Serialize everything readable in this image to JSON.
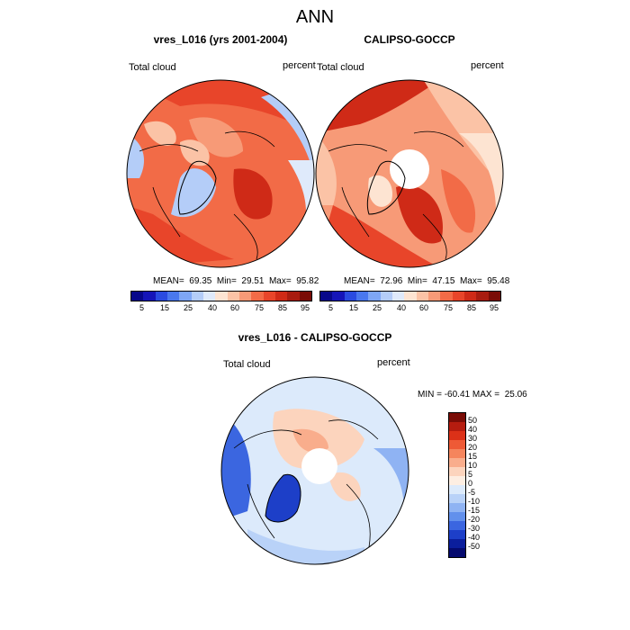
{
  "main_title": "ANN",
  "panel_left": {
    "title": "vres_L016 (yrs 2001-2004)",
    "left_label": "Total cloud",
    "right_label": "percent",
    "stats": "MEAN=  69.35  Min=  29.51  Max=  95.82"
  },
  "panel_right": {
    "title": "CALIPSO-GOCCP",
    "left_label": "Total cloud",
    "right_label": "percent",
    "stats": "MEAN=  72.96  Min=  47.15  Max=  95.48"
  },
  "panel_diff": {
    "title": "vres_L016 - CALIPSO-GOCCP",
    "left_label": "Total cloud",
    "right_label": "percent",
    "stats": "MIN = -60.41 MAX =  25.06"
  },
  "colorbar_top": {
    "colors": [
      "#08088a",
      "#1515b8",
      "#2a4be0",
      "#4a78ee",
      "#7ea6f5",
      "#b4cdf8",
      "#dfeafb",
      "#fde4d2",
      "#fbc3a6",
      "#f79a77",
      "#f26b47",
      "#e8452a",
      "#cf2a17",
      "#a81c10",
      "#7a0c06"
    ],
    "ticks": [
      "5",
      "15",
      "25",
      "40",
      "60",
      "75",
      "85",
      "95"
    ]
  },
  "colorbar_diff": {
    "colors": [
      "#7a0c06",
      "#b51c0f",
      "#dc3118",
      "#ee5a36",
      "#f5855d",
      "#f9ad8c",
      "#fcd4bd",
      "#fdeee2",
      "#dceafb",
      "#b9d2f8",
      "#8fb3f3",
      "#6290ec",
      "#3b66e0",
      "#1d3fc8",
      "#0b1e9c",
      "#050a6e"
    ],
    "ticks": [
      "50",
      "40",
      "30",
      "20",
      "15",
      "10",
      "5",
      "0",
      "-5",
      "-10",
      "-15",
      "-20",
      "-30",
      "-40",
      "-50"
    ]
  }
}
